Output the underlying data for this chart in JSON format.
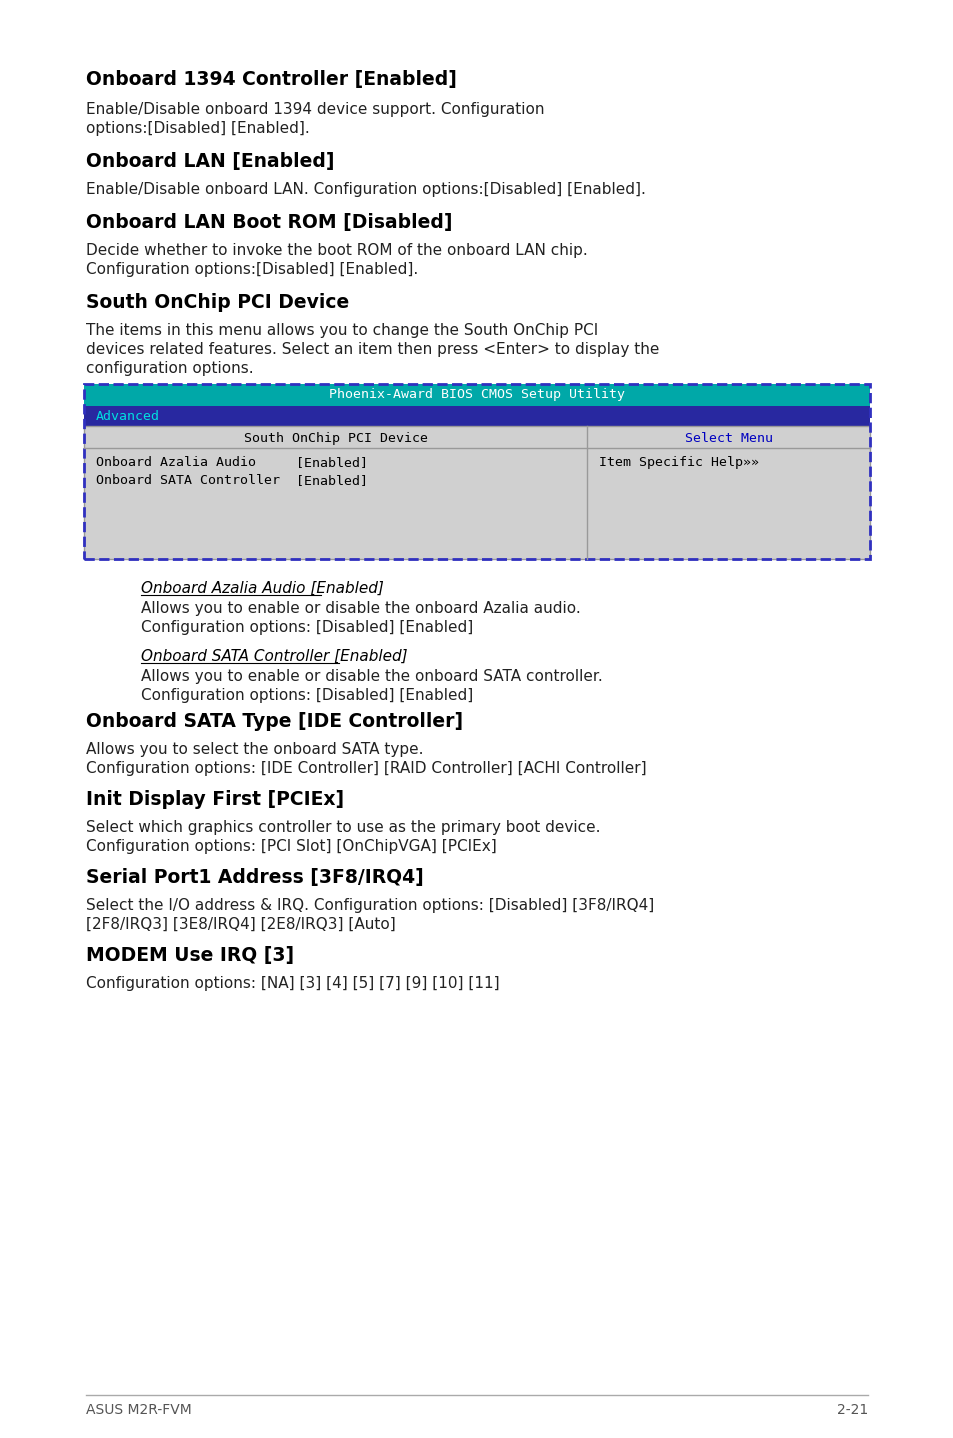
{
  "bg_color": "#ffffff",
  "bios_header_teal": "#00a8a8",
  "bios_header_navy": "#2828a0",
  "dashed_border": "#3030c0",
  "sections": [
    {
      "heading": "Onboard 1394 Controller [Enabled]",
      "body": [
        "Enable/Disable onboard 1394 device support. Configuration",
        "options:[Disabled] [Enabled]."
      ]
    },
    {
      "heading": "Onboard LAN [Enabled]",
      "body": [
        "Enable/Disable onboard LAN. Configuration options:[Disabled] [Enabled]."
      ]
    },
    {
      "heading": "Onboard LAN Boot ROM [Disabled]",
      "body": [
        "Decide whether to invoke the boot ROM of the onboard LAN chip.",
        "Configuration options:[Disabled] [Enabled]."
      ]
    },
    {
      "heading": "South OnChip PCI Device",
      "body": [
        "The items in this menu allows you to change the South OnChip PCI",
        "devices related features. Select an item then press <Enter> to display the",
        "configuration options."
      ]
    }
  ],
  "bios_title": "Phoenix-Award BIOS CMOS Setup Utility",
  "bios_tab": "Advanced",
  "bios_menu_left": "South OnChip PCI Device",
  "bios_menu_right": "Select Menu",
  "bios_row1_left": "Onboard Azalia Audio",
  "bios_row1_val": "[Enabled]",
  "bios_row2_left": "Onboard SATA Controller",
  "bios_row2_val": "[Enabled]",
  "bios_help": "Item Specific Help»»",
  "subsections": [
    {
      "heading_italic": "Onboard Azalia Audio [Enabled]",
      "body": [
        "Allows you to enable or disable the onboard Azalia audio.",
        "Configuration options: [Disabled] [Enabled]"
      ]
    },
    {
      "heading_italic": "Onboard SATA Controller [Enabled]",
      "body": [
        "Allows you to enable or disable the onboard SATA controller.",
        "Configuration options: [Disabled] [Enabled]"
      ]
    }
  ],
  "sections2": [
    {
      "heading": "Onboard SATA Type [IDE Controller]",
      "body": [
        "Allows you to select the onboard SATA type.",
        "Configuration options: [IDE Controller] [RAID Controller] [ACHI Controller]"
      ]
    },
    {
      "heading": "Init Display First [PCIEx]",
      "body": [
        "Select which graphics controller to use as the primary boot device.",
        "Configuration options: [PCI Slot] [OnChipVGA] [PCIEx]"
      ]
    },
    {
      "heading": "Serial Port1 Address [3F8/IRQ4]",
      "body": [
        "Select the I/O address & IRQ. Configuration options: [Disabled] [3F8/IRQ4]",
        "[2F8/IRQ3] [3E8/IRQ4] [2E8/IRQ3] [Auto]"
      ]
    },
    {
      "heading": "MODEM Use IRQ [3]",
      "body": [
        "Configuration options: [NA] [3] [4] [5] [7] [9] [10] [11]"
      ]
    }
  ],
  "footer_left": "ASUS M2R-FVM",
  "footer_right": "2-21"
}
